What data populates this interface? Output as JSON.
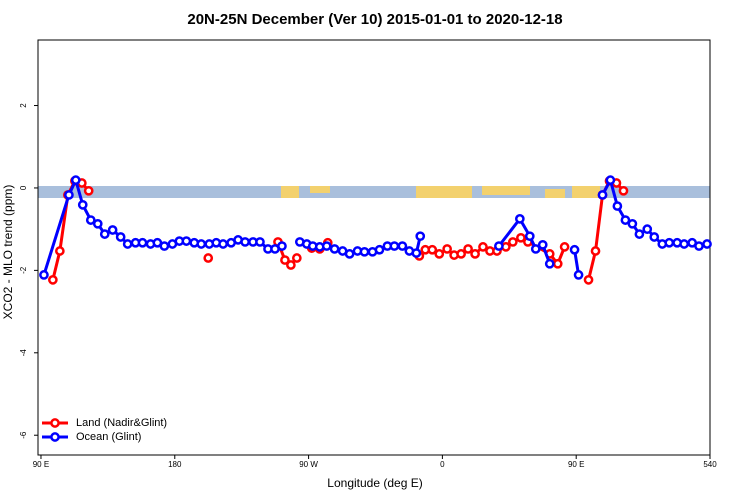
{
  "chart_data": {
    "type": "line",
    "title": "20N-25N December (Ver 10)   2015-01-01 to 2020-12-18",
    "x_label": "Longitude (deg E)",
    "y_label": "XCO2 - MLO trend (ppm)",
    "xlim": [
      88,
      540
    ],
    "ylim": [
      -6.48,
      3.59
    ],
    "xticks": [
      {
        "value": 90,
        "label": "90 E"
      },
      180,
      {
        "value": 270,
        "label": "90 W"
      },
      {
        "value": 360,
        "label": "0"
      },
      {
        "value": 450,
        "label": "90 E"
      },
      540
    ],
    "yticks": [
      2,
      0,
      -2,
      -4,
      -6
    ],
    "legend": "bottom-left",
    "series": [
      {
        "name": "Land (Nadir&Glint)",
        "color": "#ff0000",
        "x": [
          98.0,
          102.7,
          108.1,
          112.8,
          117.5,
          122.1,
          null,
          202.5,
          null,
          249.4,
          254.1,
          258.1,
          262.1,
          null,
          272.1,
          277.5,
          282.9,
          null,
          344.5,
          348.5,
          353.2,
          357.9,
          363.2,
          367.9,
          372.6,
          377.3,
          382.0,
          387.3,
          392.0,
          396.7,
          402.7,
          407.4,
          412.8,
          417.5,
          432.2,
          437.6,
          442.2,
          null,
          458.3,
          463.0,
          467.7,
          472.4,
          477.1,
          481.8
        ],
        "values": [
          -2.23,
          -1.53,
          -0.17,
          0.17,
          0.12,
          -0.07,
          null,
          -1.7,
          null,
          -1.31,
          -1.75,
          -1.87,
          -1.7,
          null,
          -1.46,
          -1.48,
          -1.33,
          null,
          -1.65,
          -1.5,
          -1.5,
          -1.6,
          -1.48,
          -1.63,
          -1.6,
          -1.48,
          -1.6,
          -1.43,
          -1.53,
          -1.53,
          -1.43,
          -1.31,
          -1.21,
          -1.31,
          -1.6,
          -1.84,
          -1.43,
          null,
          -2.23,
          -1.53,
          -0.17,
          0.17,
          0.12,
          -0.07
        ]
      },
      {
        "name": "Ocean (Glint)",
        "color": "#0000ff",
        "x": [
          92.0,
          108.8,
          113.4,
          118.1,
          123.5,
          128.2,
          132.9,
          138.2,
          143.6,
          148.3,
          153.6,
          158.3,
          163.7,
          168.3,
          173.0,
          178.4,
          183.1,
          187.8,
          193.1,
          197.8,
          203.2,
          207.9,
          212.5,
          217.9,
          222.6,
          227.3,
          232.6,
          237.3,
          242.7,
          247.4,
          252.1,
          null,
          264.1,
          268.8,
          272.8,
          277.5,
          282.2,
          287.5,
          292.9,
          297.6,
          302.9,
          307.6,
          313.0,
          317.7,
          323.0,
          327.7,
          333.1,
          337.8,
          342.5,
          345.1,
          null,
          398.0,
          412.1,
          418.8,
          422.8,
          427.5,
          432.2,
          null,
          448.9,
          451.6,
          null,
          467.7,
          473.0,
          477.7,
          483.1,
          487.8,
          492.5,
          497.8,
          502.5,
          507.9,
          512.6,
          517.9,
          522.6,
          528.0,
          532.6,
          538.0
        ],
        "values": [
          -2.11,
          -0.17,
          0.19,
          -0.41,
          -0.78,
          -0.87,
          -1.12,
          -1.02,
          -1.19,
          -1.36,
          -1.33,
          -1.33,
          -1.36,
          -1.33,
          -1.41,
          -1.36,
          -1.29,
          -1.29,
          -1.33,
          -1.36,
          -1.36,
          -1.33,
          -1.36,
          -1.33,
          -1.26,
          -1.31,
          -1.31,
          -1.31,
          -1.48,
          -1.48,
          -1.41,
          null,
          -1.31,
          -1.36,
          -1.41,
          -1.43,
          -1.41,
          -1.48,
          -1.53,
          -1.6,
          -1.53,
          -1.55,
          -1.55,
          -1.5,
          -1.41,
          -1.41,
          -1.41,
          -1.53,
          -1.58,
          -1.17,
          null,
          -1.41,
          -0.75,
          -1.17,
          -1.48,
          -1.38,
          -1.84,
          null,
          -1.5,
          -2.11,
          null,
          -0.17,
          0.19,
          -0.44,
          -0.78,
          -0.87,
          -1.12,
          -1.0,
          -1.19,
          -1.36,
          -1.33,
          -1.33,
          -1.36,
          -1.33,
          -1.41,
          -1.36
        ]
      }
    ]
  }
}
